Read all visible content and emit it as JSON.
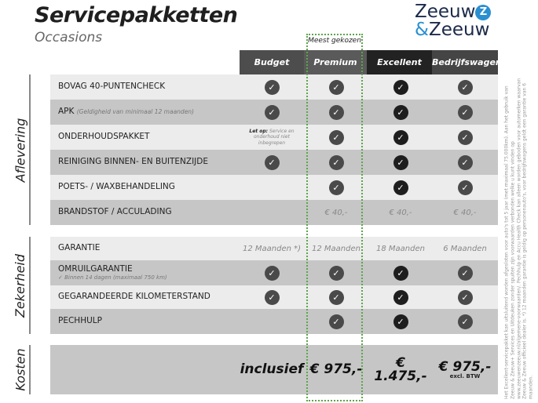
{
  "title": "Servicepakketten",
  "subtitle": "Occasions",
  "logo": {
    "line1": "Zeeuw",
    "amp": "&",
    "line2": "Zeeuw",
    "accent": "#2a8fd0"
  },
  "highlight_label": "Meest gekozen",
  "columns": [
    "Budget",
    "Premium",
    "Excellent",
    "Bedrijfswagens"
  ],
  "sections": {
    "aflevering": "Aflevering",
    "zekerheid": "Zekerheid",
    "kosten": "Kosten"
  },
  "rows": [
    {
      "label": "BOVAG 40-PUNTENCHECK",
      "cells": [
        "check",
        "check",
        "check",
        "check"
      ]
    },
    {
      "label": "APK",
      "note": "(Geldigheid van minimaal 12 maanden)",
      "cells": [
        "check",
        "check",
        "check",
        "check"
      ]
    },
    {
      "label": "ONDERHOUDSPAKKET",
      "budget_note_bold": "Let op:",
      "budget_note": "Service en onderhoud niet inbegrepen",
      "cells": [
        "",
        "check",
        "check",
        "check"
      ]
    },
    {
      "label": "REINIGING BINNEN- EN BUITENZIJDE",
      "cells": [
        "check",
        "check",
        "check",
        "check"
      ]
    },
    {
      "label": "POETS- / WAXBEHANDELING",
      "cells": [
        "",
        "check",
        "check",
        "check"
      ]
    },
    {
      "label": "BRANDSTOF / ACCULADING",
      "cells": [
        "",
        "€ 40,-",
        "€ 40,-",
        "€ 40,-"
      ]
    },
    {
      "label": "GARANTIE",
      "cells": [
        "12 Maanden *)",
        "12 Maanden",
        "18 Maanden",
        "6 Maanden"
      ]
    },
    {
      "label": "OMRUILGARANTIE",
      "sub": "✓  Binnen 14 dagen (maximaal 750 km)",
      "cells": [
        "check",
        "check",
        "check",
        "check"
      ]
    },
    {
      "label": "GEGARANDEERDE KILOMETERSTAND",
      "cells": [
        "check",
        "check",
        "check",
        "check"
      ]
    },
    {
      "label": "PECHHULP",
      "cells": [
        "",
        "check",
        "check",
        "check"
      ]
    }
  ],
  "kosten": {
    "budget": "inclusief",
    "premium": "€ 975,-",
    "excellent": "€ 1.475,-",
    "bedrijfswagens": "€ 975,-",
    "bedrijfswagens_note": "excl. BTW"
  },
  "footnote": "Het Excellent-servicepakket kan uitsluitend worden afgesloten voor auto's tot 5 jaar (met maximaal 75.000km). Aan het gebruik van Zeeuw & Zeeuw+ Services en Uitdeuken zonder spuiten zijn voorwaarden verbonden welke u kunt vinden op www.zeeuwenzeeuw.nl/algemene-voorwaarden/. Pechhulp en Accu Health Check kan alleen worden geboden voor automerken waarvan Zeeuw & Zeeuw officieel dealer is. *) 12 maanden garantie is geldig op personenauto's, voor bedrijfswagens geldt een garantie van 6 maanden."
}
